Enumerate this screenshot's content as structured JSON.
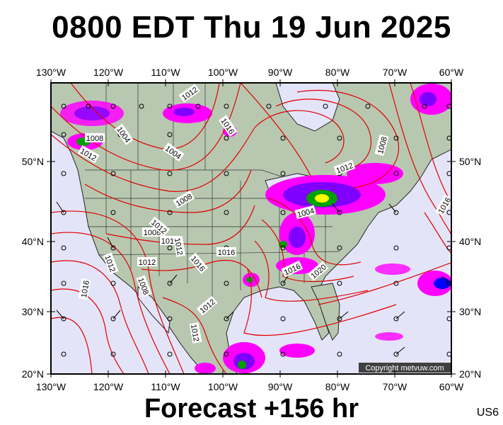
{
  "title": "0800 EDT Thu 19 Jun 2025",
  "footer": "Forecast +156 hr",
  "code": "US6",
  "copyright": "Copyright metvuw.com",
  "lon_labels": [
    "130°W",
    "120°W",
    "110°W",
    "100°W",
    "90°W",
    "80°W",
    "70°W",
    "60°W"
  ],
  "lat_labels": [
    "50°N",
    "40°N",
    "30°N",
    "20°N"
  ],
  "isobar_labels": [
    "1012",
    "1008",
    "1004",
    "1008",
    "1012",
    "1004",
    "1016",
    "1008",
    "1012",
    "1012",
    "1016",
    "1016",
    "1012",
    "1016",
    "1012",
    "1008",
    "1016",
    "1012",
    "1012",
    "1008",
    "1004",
    "1012",
    "1020",
    "1016",
    "1016"
  ],
  "colors": {
    "land": "#b8c8b0",
    "ocean": "#e4e4f8",
    "isobar": "#e00000",
    "precip_light": "#ff00ff",
    "precip_mid": "#8000ff",
    "precip_heavy": "#00a000"
  }
}
